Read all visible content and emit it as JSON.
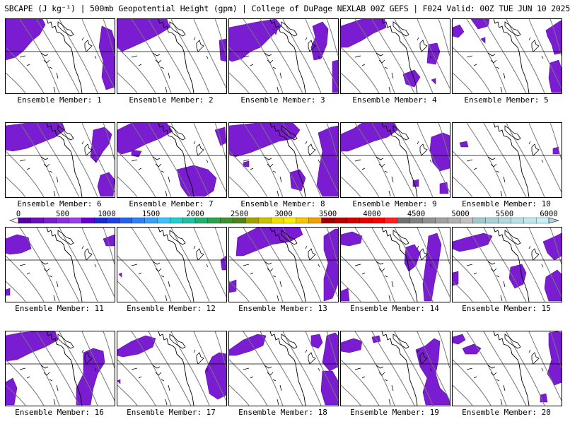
{
  "title": "SBCAPE (J kg⁻¹) | 500mb Geopotential Height (gpm) | College of DuPage NEXLAB 00Z GEFS | F024 Valid: 00Z TUE JUN 10 2025",
  "member_label_prefix": "Ensemble Member: ",
  "members": [
    {
      "number": "1",
      "label": "Ensemble Member: 1"
    },
    {
      "number": "2",
      "label": "Ensemble Member: 2"
    },
    {
      "number": "3",
      "label": "Ensemble Member: 3"
    },
    {
      "number": "4",
      "label": "Ensemble Member: 4"
    },
    {
      "number": "5",
      "label": "Ensemble Member: 5"
    },
    {
      "number": "6",
      "label": "Ensemble Member: 6"
    },
    {
      "number": "7",
      "label": "Ensemble Member: 7"
    },
    {
      "number": "8",
      "label": "Ensemble Member: 8"
    },
    {
      "number": "9",
      "label": "Ensemble Member: 9"
    },
    {
      "number": "10",
      "label": "Ensemble Member: 10"
    },
    {
      "number": "11",
      "label": "Ensemble Member: 11"
    },
    {
      "number": "12",
      "label": "Ensemble Member: 12"
    },
    {
      "number": "13",
      "label": "Ensemble Member: 13"
    },
    {
      "number": "14",
      "label": "Ensemble Member: 14"
    },
    {
      "number": "15",
      "label": "Ensemble Member: 15"
    },
    {
      "number": "16",
      "label": "Ensemble Member: 16"
    },
    {
      "number": "17",
      "label": "Ensemble Member: 17"
    },
    {
      "number": "18",
      "label": "Ensemble Member: 18"
    },
    {
      "number": "19",
      "label": "Ensemble Member: 19"
    },
    {
      "number": "20",
      "label": "Ensemble Member: 20"
    }
  ],
  "colorbar": {
    "ticks": [
      "0",
      "500",
      "1000",
      "1500",
      "2000",
      "2500",
      "3000",
      "3500",
      "4000",
      "4500",
      "5000",
      "5500",
      "6000"
    ],
    "colors": [
      "#5a00a0",
      "#6a10b8",
      "#7a20c8",
      "#8a30d8",
      "#9a40e8",
      "#6600cc",
      "#1a2acd",
      "#2040e0",
      "#2860f0",
      "#3080f8",
      "#38a0f8",
      "#40c0f8",
      "#20d0d0",
      "#20c0a0",
      "#20b070",
      "#30a050",
      "#409030",
      "#508020",
      "#a0a000",
      "#c8c000",
      "#f0e000",
      "#f8f000",
      "#f0c800",
      "#f0a000",
      "#a00000",
      "#b80000",
      "#d00000",
      "#e80000",
      "#f80000",
      "#ff2020",
      "#707070",
      "#808080",
      "#909090",
      "#a0a0a0",
      "#b0b0b0",
      "#c0c0c0",
      "#a0c8d0",
      "#a8d0d8",
      "#b0d8e0",
      "#b8e0e8",
      "#c0e8f0",
      "#c8f0f8"
    ]
  },
  "colors": {
    "cape": "#7a1cd1",
    "cape_dark": "#5e0fa8",
    "contour": "#777777",
    "coast": "#000000"
  }
}
